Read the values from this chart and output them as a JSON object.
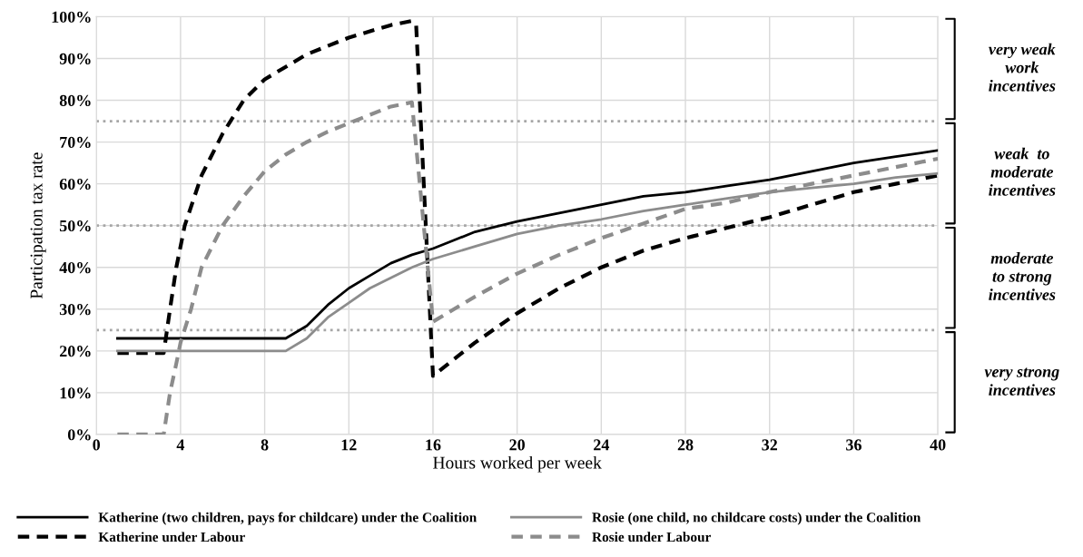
{
  "chart_data": {
    "type": "line",
    "xlabel": "Hours worked per week",
    "ylabel": "Participation tax rate",
    "xlim": [
      0,
      40
    ],
    "xticks": [
      0,
      4,
      8,
      12,
      16,
      20,
      24,
      28,
      32,
      36,
      40
    ],
    "ylim": [
      0,
      100
    ],
    "yticks": [
      {
        "value": 0,
        "label": "0%"
      },
      {
        "value": 10,
        "label": "10%"
      },
      {
        "value": 20,
        "label": "20%"
      },
      {
        "value": 30,
        "label": "30%"
      },
      {
        "value": 40,
        "label": "40%"
      },
      {
        "value": 50,
        "label": "50%"
      },
      {
        "value": 60,
        "label": "60%"
      },
      {
        "value": 70,
        "label": "70%"
      },
      {
        "value": 80,
        "label": "80%"
      },
      {
        "value": 90,
        "label": "90%"
      },
      {
        "value": 100,
        "label": "100%"
      }
    ],
    "grid": true,
    "legend": "bottom",
    "marker": "none",
    "series": [
      {
        "name": "Katherine (two children, pays for childcare) under the Coalition",
        "color": "#000000",
        "line_style": "solid",
        "x": [
          1,
          9,
          10,
          11,
          12,
          13,
          14,
          15,
          16,
          17,
          18,
          20,
          22,
          24,
          26,
          28,
          30,
          32,
          34,
          36,
          38,
          40
        ],
        "values": [
          23,
          23,
          26,
          31,
          35,
          38,
          41,
          43,
          44.5,
          46.5,
          48.5,
          51,
          53,
          55,
          57,
          58,
          59.5,
          61,
          63,
          65,
          66.5,
          68
        ]
      },
      {
        "name": "Katherine under Labour",
        "color": "#000000",
        "line_style": "dashed",
        "x": [
          1,
          3.2,
          3.5,
          3.8,
          4.2,
          5,
          6,
          7,
          8,
          9,
          10,
          11,
          12,
          13,
          14,
          15,
          15.2,
          16,
          17,
          18,
          20,
          22,
          24,
          26,
          28,
          30,
          32,
          34,
          36,
          38,
          40
        ],
        "values": [
          19.5,
          19.5,
          30,
          40,
          50,
          62,
          72,
          80,
          85,
          88,
          91,
          93,
          95,
          96.5,
          98,
          99,
          98,
          14,
          18,
          22,
          29,
          35,
          40,
          44,
          47,
          49.5,
          52,
          55,
          58,
          60,
          62
        ]
      },
      {
        "name": "Rosie (one child, no childcare costs) under the Coalition",
        "color": "#8c8c8c",
        "line_style": "solid",
        "x": [
          1,
          9,
          10,
          11,
          12,
          13,
          14,
          15,
          16,
          18,
          20,
          22,
          24,
          26,
          28,
          30,
          32,
          34,
          36,
          38,
          40
        ],
        "values": [
          20,
          20,
          23,
          28,
          31.5,
          35,
          37.5,
          40,
          42,
          45,
          48,
          50,
          51.5,
          53.5,
          55,
          56.5,
          58,
          59,
          60,
          61.5,
          62.5
        ]
      },
      {
        "name": "Rosie under Labour",
        "color": "#8c8c8c",
        "line_style": "dashed",
        "x": [
          1,
          3.2,
          3.5,
          3.8,
          4,
          4.5,
          5,
          6,
          7,
          8,
          9,
          10,
          11,
          12,
          13,
          14,
          15,
          16,
          17,
          18,
          20,
          22,
          24,
          26,
          28,
          30,
          32,
          34,
          36,
          38,
          40
        ],
        "values": [
          0,
          0,
          10,
          17,
          22,
          30,
          40,
          50,
          57,
          63,
          67,
          70,
          72.5,
          74.5,
          76.5,
          78.5,
          79.5,
          27,
          30,
          33,
          38.5,
          43,
          47,
          50.5,
          54,
          55.5,
          58,
          60,
          62,
          64,
          66
        ]
      }
    ],
    "ref_lines": [
      {
        "axis": "y",
        "value": 25,
        "color": "#a6a6a6",
        "line_style": "dotted"
      },
      {
        "axis": "y",
        "value": 50,
        "color": "#a6a6a6",
        "line_style": "dotted"
      },
      {
        "axis": "y",
        "value": 75,
        "color": "#a6a6a6",
        "line_style": "dotted"
      }
    ],
    "annotations": [
      "very weak\nwork\nincentives",
      "weak  to\nmoderate\nincentives",
      "moderate\nto strong\nincentives",
      "very strong\nincentives"
    ]
  }
}
